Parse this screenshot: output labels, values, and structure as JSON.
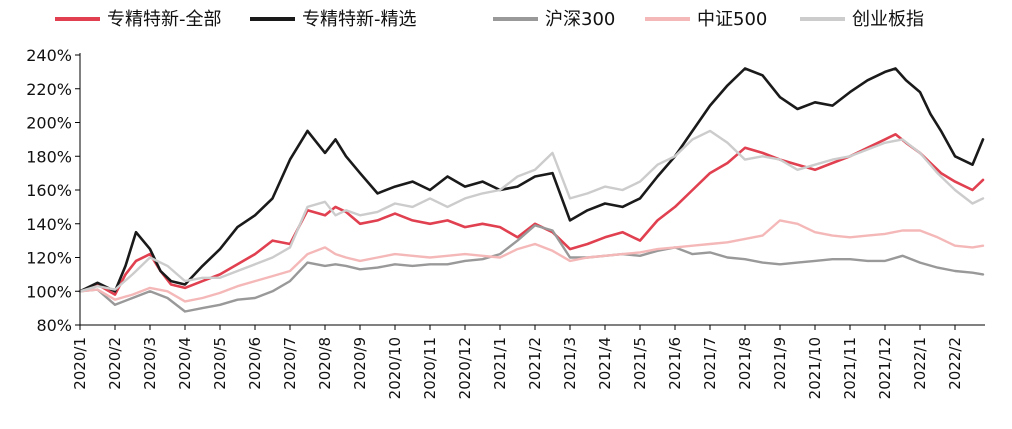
{
  "chart_data": {
    "type": "line",
    "title": "",
    "xlabel": "",
    "ylabel": "",
    "ylim": [
      80,
      240
    ],
    "y_unit": "%",
    "y_ticks": [
      80,
      100,
      120,
      140,
      160,
      180,
      200,
      220,
      240
    ],
    "y_tick_labels": [
      "80%",
      "100%",
      "120%",
      "140%",
      "160%",
      "180%",
      "200%",
      "220%",
      "240%"
    ],
    "x_tick_labels": [
      "2020/1",
      "2020/2",
      "2020/3",
      "2020/4",
      "2020/5",
      "2020/6",
      "2020/7",
      "2020/8",
      "2020/9",
      "2020/10",
      "2020/11",
      "2020/12",
      "2021/1",
      "2021/2",
      "2021/3",
      "2021/4",
      "2021/5",
      "2021/6",
      "2021/7",
      "2021/8",
      "2021/9",
      "2021/10",
      "2021/11",
      "2021/12",
      "2022/1",
      "2022/2"
    ],
    "x_range_months": [
      0,
      25.8
    ],
    "grid": false,
    "legend_placement": "top",
    "series": [
      {
        "name": "专精特新-全部",
        "color": "#e0404f",
        "x": [
          0,
          0.5,
          1,
          1.3,
          1.6,
          2,
          2.3,
          2.6,
          3,
          3.5,
          4,
          4.5,
          5,
          5.5,
          6,
          6.5,
          7,
          7.3,
          7.6,
          8,
          8.5,
          9,
          9.5,
          10,
          10.5,
          11,
          11.5,
          12,
          12.5,
          13,
          13.5,
          14,
          14.5,
          15,
          15.5,
          16,
          16.5,
          17,
          17.5,
          18,
          18.5,
          19,
          19.5,
          20,
          20.5,
          21,
          21.5,
          22,
          22.5,
          23,
          23.3,
          23.6,
          24,
          24.3,
          24.6,
          25,
          25.5,
          25.8
        ],
        "y": [
          100,
          104,
          98,
          110,
          118,
          122,
          112,
          104,
          102,
          106,
          110,
          116,
          122,
          130,
          128,
          148,
          145,
          150,
          147,
          140,
          142,
          146,
          142,
          140,
          142,
          138,
          140,
          138,
          132,
          140,
          135,
          125,
          128,
          132,
          135,
          130,
          142,
          150,
          160,
          170,
          176,
          185,
          182,
          178,
          175,
          172,
          176,
          180,
          185,
          190,
          193,
          188,
          182,
          176,
          170,
          165,
          160,
          166
        ]
      },
      {
        "name": "专精特新-精选",
        "color": "#1a1a1a",
        "x": [
          0,
          0.5,
          1,
          1.3,
          1.6,
          2,
          2.3,
          2.6,
          3,
          3.5,
          4,
          4.5,
          5,
          5.5,
          6,
          6.5,
          7,
          7.3,
          7.6,
          8,
          8.5,
          9,
          9.5,
          10,
          10.5,
          11,
          11.5,
          12,
          12.5,
          13,
          13.5,
          14,
          14.5,
          15,
          15.5,
          16,
          16.5,
          17,
          17.5,
          18,
          18.5,
          19,
          19.5,
          20,
          20.5,
          21,
          21.5,
          22,
          22.5,
          23,
          23.3,
          23.6,
          24,
          24.3,
          24.6,
          25,
          25.5,
          25.8
        ],
        "y": [
          100,
          105,
          100,
          115,
          135,
          125,
          112,
          106,
          104,
          115,
          125,
          138,
          145,
          155,
          178,
          195,
          182,
          190,
          180,
          170,
          158,
          162,
          165,
          160,
          168,
          162,
          165,
          160,
          162,
          168,
          170,
          142,
          148,
          152,
          150,
          155,
          168,
          180,
          195,
          210,
          222,
          232,
          228,
          215,
          208,
          212,
          210,
          218,
          225,
          230,
          232,
          225,
          218,
          205,
          195,
          180,
          175,
          190
        ]
      },
      {
        "name": "沪深300",
        "color": "#999999",
        "x": [
          0,
          0.5,
          1,
          1.5,
          2,
          2.5,
          3,
          3.5,
          4,
          4.5,
          5,
          5.5,
          6,
          6.5,
          7,
          7.3,
          7.6,
          8,
          8.5,
          9,
          9.5,
          10,
          10.5,
          11,
          11.5,
          12,
          12.5,
          13,
          13.5,
          14,
          14.5,
          15,
          15.5,
          16,
          16.5,
          17,
          17.5,
          18,
          18.5,
          19,
          19.5,
          20,
          20.5,
          21,
          21.5,
          22,
          22.5,
          23,
          23.5,
          24,
          24.5,
          25,
          25.5,
          25.8
        ],
        "y": [
          100,
          101,
          92,
          96,
          100,
          96,
          88,
          90,
          92,
          95,
          96,
          100,
          106,
          117,
          115,
          116,
          115,
          113,
          114,
          116,
          115,
          116,
          116,
          118,
          119,
          122,
          130,
          139,
          136,
          120,
          120,
          121,
          122,
          121,
          124,
          126,
          122,
          123,
          120,
          119,
          117,
          116,
          117,
          118,
          119,
          119,
          118,
          118,
          121,
          117,
          114,
          112,
          111,
          110
        ]
      },
      {
        "name": "中证500",
        "color": "#f5b8b8",
        "x": [
          0,
          0.5,
          1,
          1.5,
          2,
          2.5,
          3,
          3.5,
          4,
          4.5,
          5,
          5.5,
          6,
          6.5,
          7,
          7.3,
          7.6,
          8,
          8.5,
          9,
          9.5,
          10,
          10.5,
          11,
          11.5,
          12,
          12.5,
          13,
          13.5,
          14,
          14.5,
          15,
          15.5,
          16,
          16.5,
          17,
          17.5,
          18,
          18.5,
          19,
          19.5,
          20,
          20.5,
          21,
          21.5,
          22,
          22.5,
          23,
          23.5,
          24,
          24.5,
          25,
          25.5,
          25.8
        ],
        "y": [
          100,
          101,
          95,
          98,
          102,
          100,
          94,
          96,
          99,
          103,
          106,
          109,
          112,
          122,
          126,
          122,
          120,
          118,
          120,
          122,
          121,
          120,
          121,
          122,
          121,
          120,
          125,
          128,
          124,
          118,
          120,
          121,
          122,
          123,
          125,
          126,
          127,
          128,
          129,
          131,
          133,
          142,
          140,
          135,
          133,
          132,
          133,
          134,
          136,
          136,
          132,
          127,
          126,
          127
        ]
      },
      {
        "name": "创业板指",
        "color": "#cccccc",
        "x": [
          0,
          0.5,
          1,
          1.5,
          2,
          2.5,
          3,
          3.5,
          4,
          4.5,
          5,
          5.5,
          6,
          6.5,
          7,
          7.3,
          7.6,
          8,
          8.5,
          9,
          9.5,
          10,
          10.5,
          11,
          11.5,
          12,
          12.5,
          13,
          13.5,
          14,
          14.5,
          15,
          15.5,
          16,
          16.5,
          17,
          17.5,
          18,
          18.5,
          19,
          19.5,
          20,
          20.5,
          21,
          21.5,
          22,
          22.5,
          23,
          23.5,
          24,
          24.5,
          25,
          25.5,
          25.8
        ],
        "y": [
          100,
          103,
          101,
          110,
          120,
          115,
          106,
          108,
          108,
          112,
          116,
          120,
          126,
          150,
          153,
          145,
          148,
          145,
          147,
          152,
          150,
          155,
          150,
          155,
          158,
          160,
          168,
          172,
          182,
          155,
          158,
          162,
          160,
          165,
          175,
          180,
          190,
          195,
          188,
          178,
          180,
          178,
          172,
          175,
          178,
          180,
          184,
          188,
          190,
          182,
          170,
          160,
          152,
          155
        ]
      }
    ]
  }
}
